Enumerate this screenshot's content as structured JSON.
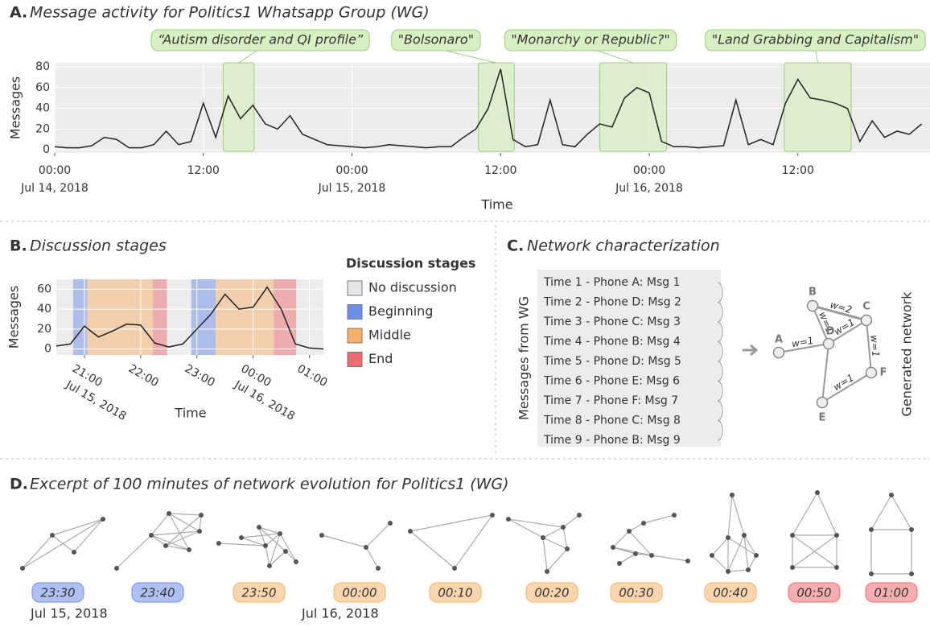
{
  "chart_data": [
    {
      "type": "line",
      "panel": "A.",
      "title": "Message activity for Politics1 Whatsapp Group (WG)",
      "xlabel": "Time",
      "ylabel": "Messages",
      "x": [
        "2018-07-14T00:00",
        "2018-07-14T01:00",
        "2018-07-14T02:00",
        "2018-07-14T03:00",
        "2018-07-14T04:00",
        "2018-07-14T05:00",
        "2018-07-14T06:00",
        "2018-07-14T07:00",
        "2018-07-14T08:00",
        "2018-07-14T09:00",
        "2018-07-14T10:00",
        "2018-07-14T11:00",
        "2018-07-14T12:00",
        "2018-07-14T13:00",
        "2018-07-14T14:00",
        "2018-07-14T15:00",
        "2018-07-14T16:00",
        "2018-07-14T17:00",
        "2018-07-14T18:00",
        "2018-07-14T19:00",
        "2018-07-14T20:00",
        "2018-07-14T21:00",
        "2018-07-14T22:00",
        "2018-07-14T23:00",
        "2018-07-15T00:00",
        "2018-07-15T01:00",
        "2018-07-15T02:00",
        "2018-07-15T03:00",
        "2018-07-15T04:00",
        "2018-07-15T05:00",
        "2018-07-15T06:00",
        "2018-07-15T07:00",
        "2018-07-15T08:00",
        "2018-07-15T09:00",
        "2018-07-15T10:00",
        "2018-07-15T11:00",
        "2018-07-15T12:00",
        "2018-07-15T13:00",
        "2018-07-15T14:00",
        "2018-07-15T15:00",
        "2018-07-15T16:00",
        "2018-07-15T17:00",
        "2018-07-15T18:00",
        "2018-07-15T19:00",
        "2018-07-15T20:00",
        "2018-07-15T21:00",
        "2018-07-15T22:00",
        "2018-07-15T23:00",
        "2018-07-16T00:00",
        "2018-07-16T01:00",
        "2018-07-16T02:00",
        "2018-07-16T03:00",
        "2018-07-16T04:00",
        "2018-07-16T05:00",
        "2018-07-16T06:00",
        "2018-07-16T07:00",
        "2018-07-16T08:00",
        "2018-07-16T09:00",
        "2018-07-16T10:00",
        "2018-07-16T11:00",
        "2018-07-16T12:00",
        "2018-07-16T13:00",
        "2018-07-16T14:00",
        "2018-07-16T15:00",
        "2018-07-16T16:00",
        "2018-07-16T17:00",
        "2018-07-16T18:00",
        "2018-07-16T19:00",
        "2018-07-16T20:00",
        "2018-07-16T21:00",
        "2018-07-16T22:00"
      ],
      "series": [
        {
          "color": "#222222",
          "values": [
            3,
            2,
            2,
            4,
            12,
            10,
            2,
            2,
            5,
            18,
            5,
            8,
            45,
            12,
            52,
            30,
            43,
            25,
            20,
            33,
            15,
            10,
            5,
            4,
            3,
            2,
            3,
            5,
            4,
            3,
            2,
            3,
            3,
            12,
            20,
            40,
            78,
            10,
            3,
            5,
            48,
            5,
            3,
            15,
            25,
            22,
            50,
            60,
            55,
            8,
            3,
            3,
            2,
            3,
            4,
            48,
            5,
            10,
            5,
            45,
            68,
            50,
            48,
            45,
            40,
            8,
            28,
            12,
            18,
            15,
            25
          ]
        }
      ],
      "xlim": [
        "2018-07-14T00:00",
        "2018-07-16T22:40"
      ],
      "xticks": [
        {
          "value": "2018-07-14T00:00",
          "label": "00:00"
        },
        {
          "value": "2018-07-14T12:00",
          "label": "12:00"
        },
        {
          "value": "2018-07-15T00:00",
          "label": "00:00"
        },
        {
          "value": "2018-07-15T12:00",
          "label": "12:00"
        },
        {
          "value": "2018-07-16T00:00",
          "label": "00:00"
        },
        {
          "value": "2018-07-16T12:00",
          "label": "12:00"
        }
      ],
      "xtick_dates": [
        {
          "value": "2018-07-14T00:00",
          "label": "Jul 14, 2018"
        },
        {
          "value": "2018-07-15T00:00",
          "label": "Jul 15, 2018"
        },
        {
          "value": "2018-07-16T00:00",
          "label": "Jul 16, 2018"
        }
      ],
      "ylim": [
        -3,
        84
      ],
      "yticks": [
        0,
        20,
        40,
        60,
        80
      ],
      "grid": true,
      "annotations": [
        {
          "text": "“Autism disorder and QI profile”",
          "start": "2018-07-14T13:36",
          "end": "2018-07-14T16:06"
        },
        {
          "text": "\"Bolsonaro\"",
          "start": "2018-07-15T10:12",
          "end": "2018-07-15T13:06"
        },
        {
          "text": "\"Monarchy or Republic?\"",
          "start": "2018-07-15T20:00",
          "end": "2018-07-16T01:24"
        },
        {
          "text": "\"Land Grabbing and Capitalism\"",
          "start": "2018-07-16T10:54",
          "end": "2018-07-16T16:18"
        }
      ],
      "annotation_color": "#d8efc4"
    },
    {
      "type": "line",
      "panel": "B.",
      "title": "Discussion stages",
      "xlabel": "Time",
      "ylabel": "Messages",
      "x": [
        "2018-07-15T20:30",
        "2018-07-15T20:45",
        "2018-07-15T21:00",
        "2018-07-15T21:15",
        "2018-07-15T21:30",
        "2018-07-15T21:45",
        "2018-07-15T22:00",
        "2018-07-15T22:15",
        "2018-07-15T22:30",
        "2018-07-15T22:45",
        "2018-07-15T23:00",
        "2018-07-15T23:15",
        "2018-07-15T23:30",
        "2018-07-15T23:45",
        "2018-07-16T00:00",
        "2018-07-16T00:15",
        "2018-07-16T00:30",
        "2018-07-16T00:45",
        "2018-07-16T01:00",
        "2018-07-16T01:15"
      ],
      "series": [
        {
          "color": "#222222",
          "values": [
            3,
            5,
            23,
            12,
            18,
            25,
            24,
            6,
            2,
            5,
            20,
            35,
            55,
            40,
            42,
            62,
            40,
            5,
            1,
            0
          ]
        }
      ],
      "xlim": [
        "2018-07-15T20:30",
        "2018-07-16T01:15"
      ],
      "xticks": [
        {
          "value": "2018-07-15T21:00",
          "label": "21:00"
        },
        {
          "value": "2018-07-15T22:00",
          "label": "22:00"
        },
        {
          "value": "2018-07-15T23:00",
          "label": "23:00"
        },
        {
          "value": "2018-07-16T00:00",
          "label": "00:00"
        },
        {
          "value": "2018-07-16T01:00",
          "label": "01:00"
        }
      ],
      "xtick_dates": [
        {
          "value": "2018-07-15T21:00",
          "label": "Jul 15, 2018"
        },
        {
          "value": "2018-07-16T00:00",
          "label": "Jul 16, 2018"
        }
      ],
      "ylim": [
        -6,
        70
      ],
      "yticks": [
        0,
        20,
        40,
        60
      ],
      "grid": true,
      "stages": [
        {
          "name": "Beginning",
          "start": "2018-07-15T20:48",
          "end": "2018-07-15T21:03"
        },
        {
          "name": "Middle",
          "start": "2018-07-15T21:03",
          "end": "2018-07-15T22:13"
        },
        {
          "name": "End",
          "start": "2018-07-15T22:13",
          "end": "2018-07-15T22:28"
        },
        {
          "name": "Beginning",
          "start": "2018-07-15T22:54",
          "end": "2018-07-15T23:20"
        },
        {
          "name": "Middle",
          "start": "2018-07-15T23:20",
          "end": "2018-07-16T00:22"
        },
        {
          "name": "End",
          "start": "2018-07-16T00:22",
          "end": "2018-07-16T00:46"
        }
      ],
      "legend": {
        "title": "Discussion stages",
        "items": [
          {
            "name": "No discussion",
            "color": "#e6e6e6"
          },
          {
            "name": "Beginning",
            "color": "#6d8ee8"
          },
          {
            "name": "Middle",
            "color": "#f5b26b"
          },
          {
            "name": "End",
            "color": "#ee6b70"
          }
        ]
      }
    }
  ],
  "network_characterization": {
    "panel": "C.",
    "title": "Network characterization",
    "list_label": "Messages from WG",
    "network_label": "Generated network",
    "messages": [
      "Time 1 - Phone A:  Msg 1",
      "Time 2 - Phone D:  Msg 2",
      "Time 3 - Phone C:  Msg 3",
      "Time 4 - Phone B:  Msg 4",
      "Time 5 - Phone D:  Msg 5",
      "Time 6 - Phone E:  Msg 6",
      "Time 7 - Phone F:  Msg 7",
      "Time 8 - Phone C:  Msg 8",
      "Time 9 - Phone B:  Msg 9"
    ],
    "nodes": [
      "A",
      "B",
      "C",
      "D",
      "E",
      "F"
    ],
    "edges": [
      {
        "from": "A",
        "to": "D",
        "label": "w=1"
      },
      {
        "from": "B",
        "to": "C",
        "label": "w=2"
      },
      {
        "from": "B",
        "to": "D",
        "label": "w=1"
      },
      {
        "from": "D",
        "to": "C",
        "label": "w=1"
      },
      {
        "from": "C",
        "to": "F",
        "label": "w=1"
      },
      {
        "from": "E",
        "to": "F",
        "label": "w=1"
      },
      {
        "from": "D",
        "to": "E"
      }
    ]
  },
  "network_evolution": {
    "panel": "D.",
    "title": "Excerpt of 100 minutes of network evolution for Politics1 (WG)",
    "snapshots": [
      {
        "time": "23:30",
        "stage": "Beginning",
        "date": "Jul 15, 2018"
      },
      {
        "time": "23:40",
        "stage": "Beginning"
      },
      {
        "time": "23:50",
        "stage": "Middle"
      },
      {
        "time": "00:00",
        "stage": "Middle",
        "date": "Jul 16, 2018"
      },
      {
        "time": "00:10",
        "stage": "Middle"
      },
      {
        "time": "00:20",
        "stage": "Middle"
      },
      {
        "time": "00:30",
        "stage": "Middle"
      },
      {
        "time": "00:40",
        "stage": "Middle"
      },
      {
        "time": "00:50",
        "stage": "End"
      },
      {
        "time": "01:00",
        "stage": "End"
      }
    ]
  }
}
